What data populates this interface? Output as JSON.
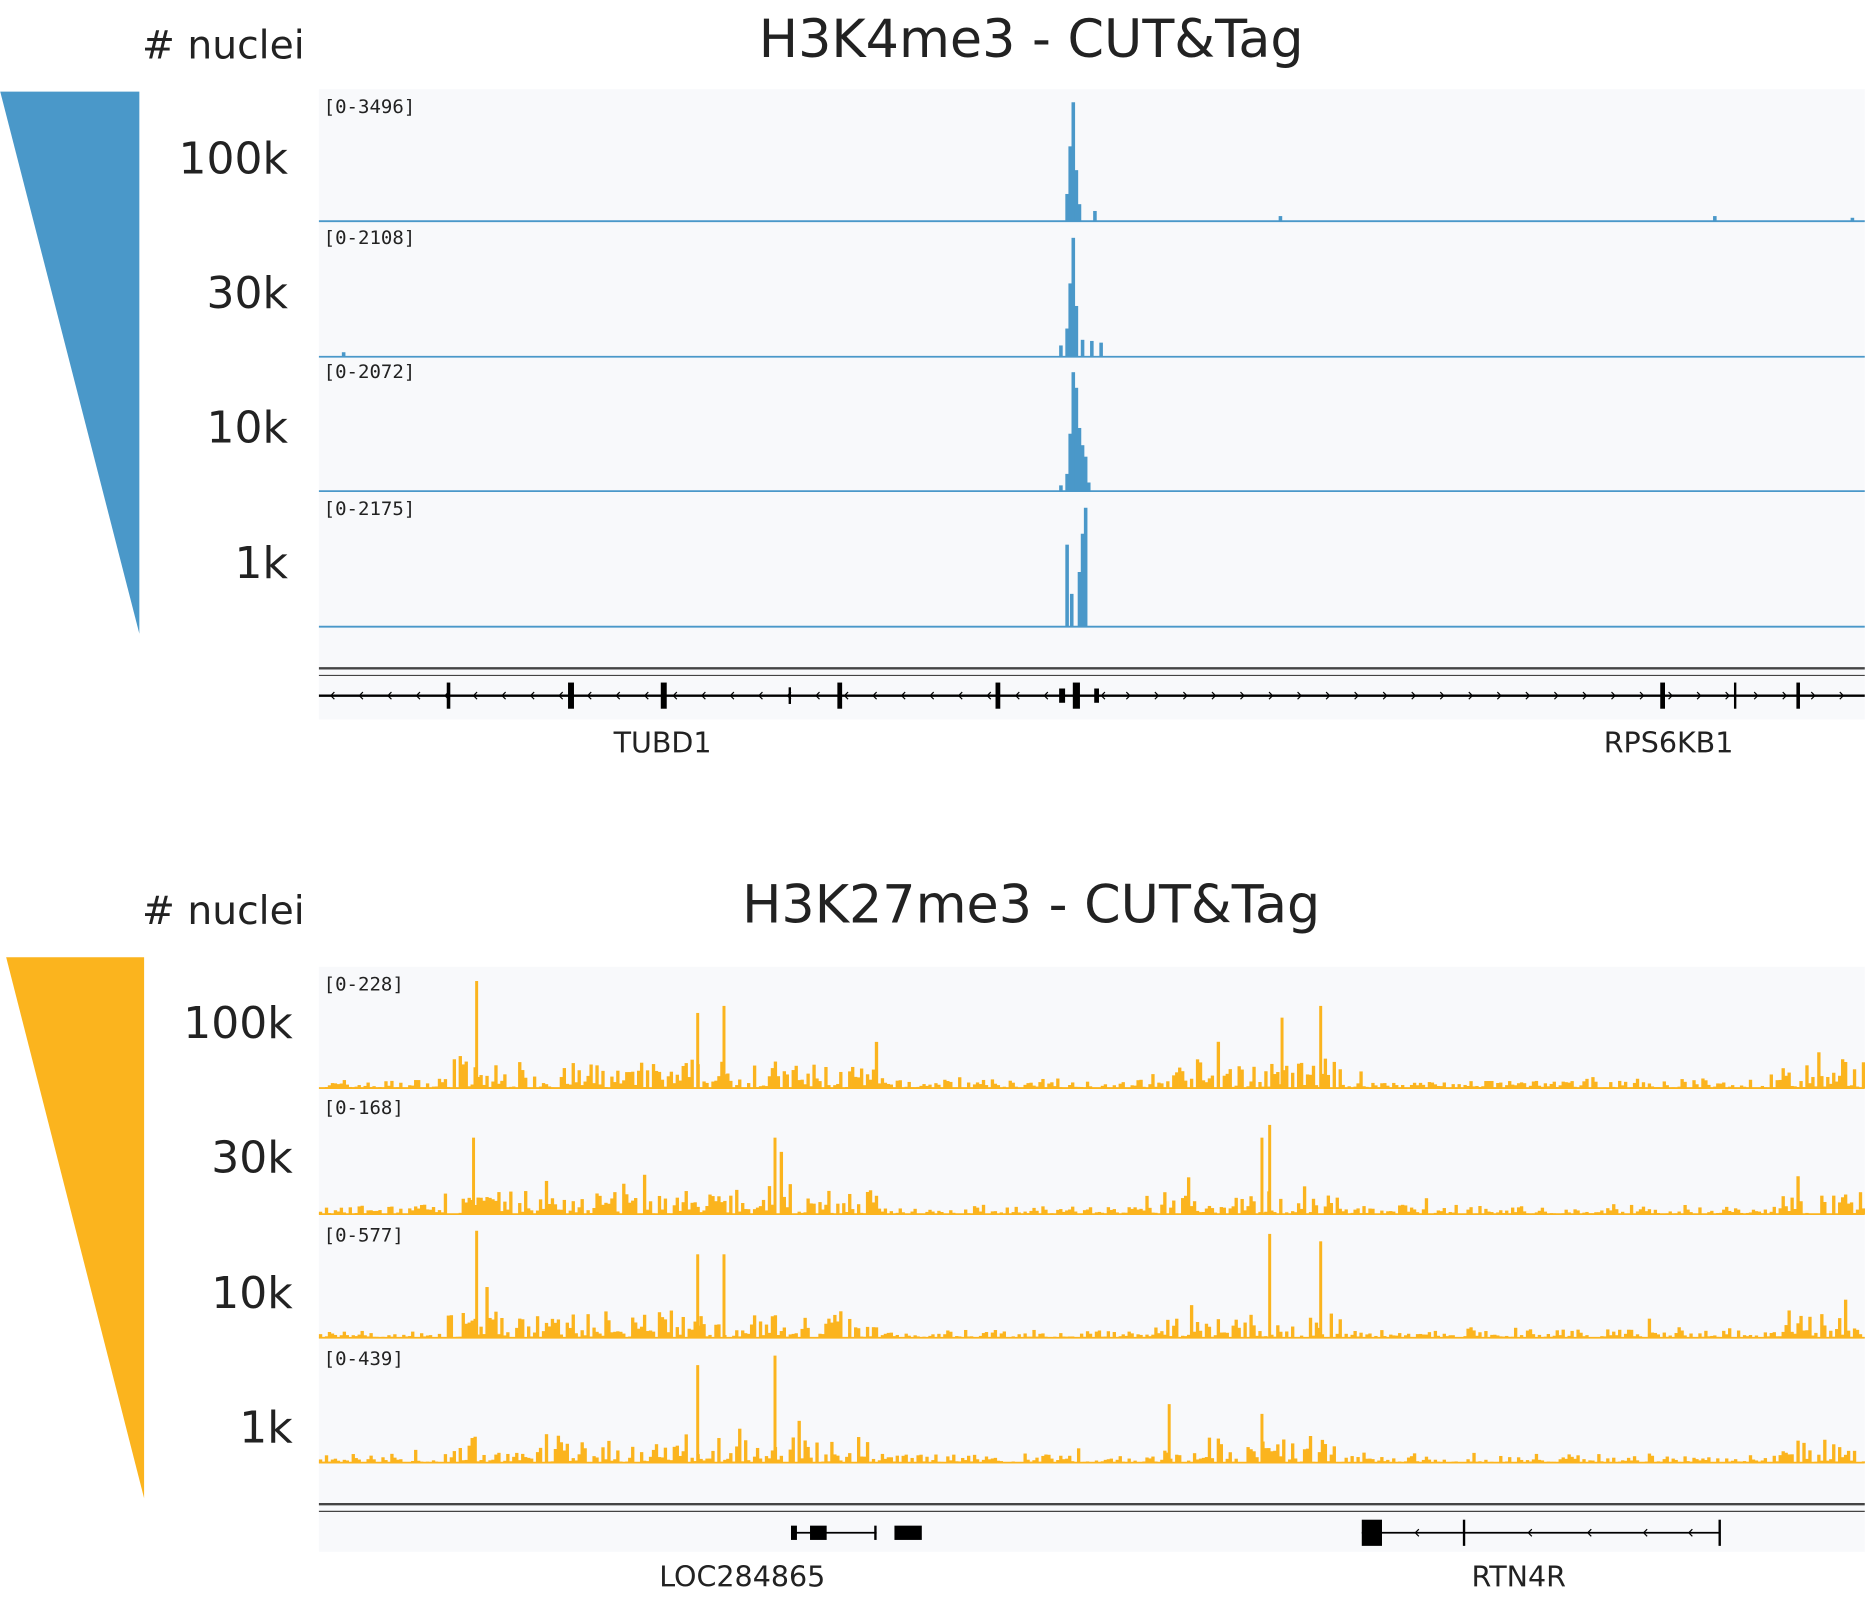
{
  "panels": [
    {
      "title": "H3K4me3 - CUT&Tag",
      "nuclei_label": "# nuclei",
      "color": "#4a98c9",
      "tracks": [
        {
          "level": "100k",
          "range": "[0-3496]"
        },
        {
          "level": "30k",
          "range": "[0-2108]"
        },
        {
          "level": "10k",
          "range": "[0-2072]"
        },
        {
          "level": "1k",
          "range": "[0-2175]"
        }
      ],
      "genes": [
        {
          "name": "TUBD1"
        },
        {
          "name": "RPS6KB1"
        }
      ]
    },
    {
      "title": "H3K27me3 - CUT&Tag",
      "nuclei_label": "# nuclei",
      "color": "#fbb41e",
      "tracks": [
        {
          "level": "100k",
          "range": "[0-228]"
        },
        {
          "level": "30k",
          "range": "[0-168]"
        },
        {
          "level": "10k",
          "range": "[0-577]"
        },
        {
          "level": "1k",
          "range": "[0-439]"
        }
      ],
      "genes": [
        {
          "name": "LOC284865"
        },
        {
          "name": "RTN4R"
        }
      ]
    }
  ],
  "chart_data": [
    {
      "type": "bar",
      "title": "H3K4me3 - CUT&Tag",
      "x_range": [
        0,
        1000
      ],
      "series": [
        {
          "name": "100k",
          "ymax": 3496,
          "peaks": [
            [
              488,
              3496
            ],
            [
              486,
              2200
            ],
            [
              490,
              1500
            ],
            [
              484,
              800
            ],
            [
              492,
              500
            ],
            [
              502,
              300
            ],
            [
              622,
              150
            ],
            [
              903,
              150
            ],
            [
              992,
              100
            ]
          ]
        },
        {
          "name": "30k",
          "ymax": 2108,
          "peaks": [
            [
              488,
              2108
            ],
            [
              486,
              1300
            ],
            [
              490,
              900
            ],
            [
              484,
              500
            ],
            [
              480,
              200
            ],
            [
              494,
              300
            ],
            [
              500,
              280
            ],
            [
              506,
              250
            ],
            [
              16,
              80
            ]
          ]
        },
        {
          "name": "10k",
          "ymax": 2072,
          "peaks": [
            [
              488,
              2072
            ],
            [
              490,
              1800
            ],
            [
              486,
              1000
            ],
            [
              492,
              1100
            ],
            [
              494,
              800
            ],
            [
              496,
              600
            ],
            [
              484,
              300
            ],
            [
              480,
              100
            ],
            [
              498,
              150
            ]
          ]
        },
        {
          "name": "1k",
          "ymax": 2175,
          "peaks": [
            [
              496,
              2175
            ],
            [
              494,
              1700
            ],
            [
              492,
              1000
            ],
            [
              484,
              1500
            ],
            [
              487,
              600
            ]
          ]
        }
      ]
    },
    {
      "type": "bar",
      "title": "H3K27me3 - CUT&Tag",
      "x_range": [
        0,
        1000
      ],
      "enriched_regions": [
        [
          80,
          360
        ],
        [
          545,
          660
        ],
        [
          945,
          1000
        ]
      ],
      "series": [
        {
          "name": "100k",
          "ymax": 228,
          "spikes": [
            [
              102,
              228
            ],
            [
              245,
              160
            ],
            [
              262,
              175
            ],
            [
              623,
              150
            ],
            [
              648,
              175
            ]
          ]
        },
        {
          "name": "30k",
          "ymax": 168,
          "spikes": [
            [
              100,
              120
            ],
            [
              295,
              120
            ],
            [
              615,
              140
            ],
            [
              610,
              120
            ]
          ]
        },
        {
          "name": "10k",
          "ymax": 577,
          "spikes": [
            [
              102,
              577
            ],
            [
              245,
              450
            ],
            [
              262,
              450
            ],
            [
              615,
              560
            ],
            [
              648,
              520
            ]
          ]
        },
        {
          "name": "1k",
          "ymax": 439,
          "spikes": [
            [
              245,
              400
            ],
            [
              295,
              439
            ],
            [
              550,
              240
            ],
            [
              610,
              200
            ]
          ]
        }
      ]
    }
  ]
}
